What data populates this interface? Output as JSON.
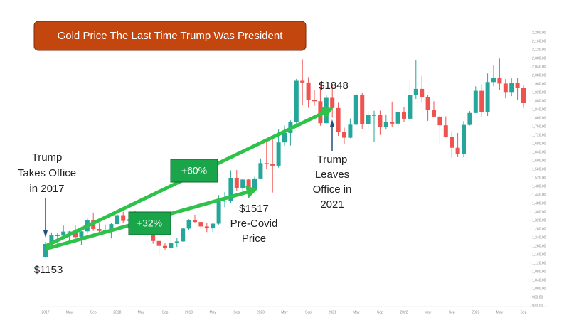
{
  "chart_data": {
    "type": "candlestick",
    "title": "Gold Price The Last Time Trump Was President",
    "categories": [
      "2017",
      null,
      null,
      null,
      "May",
      null,
      null,
      null,
      "Sep",
      null,
      null,
      null,
      "2018",
      null,
      null,
      null,
      "May",
      null,
      null,
      null,
      "Sep",
      null,
      null,
      null,
      "2019",
      null,
      null,
      null,
      "May",
      null,
      null,
      null,
      "Sep",
      null,
      null,
      null,
      "2020",
      null,
      null,
      null,
      "May",
      null,
      null,
      null,
      "Sep",
      null,
      null,
      null,
      "2021",
      null,
      null,
      null,
      "May",
      null,
      null,
      null,
      "Sep",
      null,
      null,
      null,
      "2022",
      null,
      null,
      null,
      "May",
      null,
      null,
      null,
      "Sep",
      null,
      null,
      null,
      "2023",
      null,
      null,
      null,
      "May",
      null,
      null,
      null,
      "Sep"
    ],
    "open": [
      1150,
      1210,
      1250,
      1249,
      1268,
      1268,
      1242,
      1269,
      1322,
      1280,
      1271,
      1275,
      1303,
      1345,
      1318,
      1325,
      1315,
      1298,
      1252,
      1224,
      1201,
      1192,
      1215,
      1222,
      1282,
      1321,
      1313,
      1292,
      1283,
      1305,
      1409,
      1413,
      1520,
      1472,
      1512,
      1463,
      1517,
      1589,
      1585,
      1577,
      1686,
      1730,
      1781,
      1975,
      1967,
      1886,
      1879,
      1776,
      1895,
      1847,
      1734,
      1708,
      1769,
      1907,
      1770,
      1814,
      1814,
      1757,
      1783,
      1774,
      1829,
      1797,
      1909,
      1937,
      1897,
      1837,
      1807,
      1766,
      1711,
      1661,
      1633,
      1768,
      1824,
      1928,
      1827,
      1969,
      1990,
      1962,
      1919,
      1965,
      1940
    ],
    "high": [
      1220,
      1264,
      1262,
      1296,
      1270,
      1296,
      1270,
      1331,
      1357,
      1306,
      1299,
      1309,
      1366,
      1361,
      1356,
      1365,
      1326,
      1309,
      1266,
      1224,
      1214,
      1243,
      1237,
      1284,
      1326,
      1347,
      1324,
      1310,
      1306,
      1439,
      1453,
      1555,
      1557,
      1517,
      1516,
      1525,
      1611,
      1689,
      1704,
      1748,
      1765,
      1789,
      1984,
      2075,
      1992,
      1933,
      1965,
      1906,
      1959,
      1872,
      1755,
      1798,
      1913,
      1917,
      1833,
      1834,
      1835,
      1814,
      1877,
      1831,
      1853,
      1974,
      2070,
      1998,
      1910,
      1879,
      1814,
      1808,
      1735,
      1730,
      1786,
      1833,
      1949,
      1959,
      2009,
      2048,
      2079,
      1983,
      1987,
      1987,
      1953
    ],
    "low": [
      1145,
      1200,
      1195,
      1240,
      1214,
      1236,
      1205,
      1258,
      1271,
      1260,
      1264,
      1236,
      1302,
      1307,
      1303,
      1310,
      1282,
      1246,
      1211,
      1160,
      1180,
      1182,
      1196,
      1221,
      1275,
      1310,
      1281,
      1266,
      1266,
      1301,
      1382,
      1400,
      1460,
      1458,
      1445,
      1453,
      1517,
      1563,
      1451,
      1568,
      1670,
      1671,
      1757,
      1863,
      1848,
      1859,
      1764,
      1775,
      1802,
      1717,
      1677,
      1706,
      1766,
      1750,
      1750,
      1688,
      1721,
      1746,
      1759,
      1753,
      1780,
      1781,
      1890,
      1872,
      1787,
      1806,
      1681,
      1709,
      1615,
      1617,
      1616,
      1765,
      1823,
      1805,
      1810,
      1949,
      1932,
      1893,
      1903,
      1884,
      1848
    ],
    "close": [
      1210,
      1250,
      1249,
      1268,
      1268,
      1242,
      1269,
      1322,
      1280,
      1271,
      1275,
      1303,
      1345,
      1318,
      1325,
      1315,
      1298,
      1252,
      1224,
      1201,
      1192,
      1215,
      1222,
      1282,
      1321,
      1313,
      1292,
      1283,
      1305,
      1409,
      1413,
      1520,
      1472,
      1512,
      1463,
      1517,
      1589,
      1585,
      1577,
      1686,
      1730,
      1781,
      1975,
      1967,
      1886,
      1879,
      1776,
      1895,
      1847,
      1734,
      1708,
      1769,
      1907,
      1770,
      1814,
      1814,
      1757,
      1783,
      1774,
      1829,
      1797,
      1909,
      1937,
      1897,
      1837,
      1807,
      1766,
      1711,
      1661,
      1633,
      1768,
      1824,
      1928,
      1827,
      1969,
      1990,
      1962,
      1919,
      1965,
      1940,
      1870
    ],
    "up_color": "#26a69a",
    "down_color": "#ef5350",
    "ylim": [
      900,
      2220
    ],
    "yticks": [
      {
        "value": 920,
        "label": "920.00"
      },
      {
        "value": 960,
        "label": "960.00"
      },
      {
        "value": 1000,
        "label": "1,000.00"
      },
      {
        "value": 1040,
        "label": "1,040.00"
      },
      {
        "value": 1080,
        "label": "1,080.00"
      },
      {
        "value": 1120,
        "label": "1,120.00"
      },
      {
        "value": 1160,
        "label": "1,160.00"
      },
      {
        "value": 1200,
        "label": "1,200.00"
      },
      {
        "value": 1240,
        "label": "1,240.00"
      },
      {
        "value": 1280,
        "label": "1,280.00"
      },
      {
        "value": 1320,
        "label": "1,320.00"
      },
      {
        "value": 1360,
        "label": "1,360.00"
      },
      {
        "value": 1400,
        "label": "1,400.00"
      },
      {
        "value": 1440,
        "label": "1,440.00"
      },
      {
        "value": 1480,
        "label": "1,480.00"
      },
      {
        "value": 1520,
        "label": "1,520.00"
      },
      {
        "value": 1560,
        "label": "1,560.00"
      },
      {
        "value": 1600,
        "label": "1,600.00"
      },
      {
        "value": 1640,
        "label": "1,640.00"
      },
      {
        "value": 1680,
        "label": "1,680.00"
      },
      {
        "value": 1720,
        "label": "1,720.00"
      },
      {
        "value": 1760,
        "label": "1,760.00"
      },
      {
        "value": 1800,
        "label": "1,800.00"
      },
      {
        "value": 1840,
        "label": "1,840.00"
      },
      {
        "value": 1880,
        "label": "1,880.00"
      },
      {
        "value": 1920,
        "label": "1,920.00"
      },
      {
        "value": 1960,
        "label": "1,960.00"
      },
      {
        "value": 2000,
        "label": "2,000.00"
      },
      {
        "value": 2040,
        "label": "2,040.00"
      },
      {
        "value": 2080,
        "label": "2,080.00"
      },
      {
        "value": 2120,
        "label": "2,120.00"
      },
      {
        "value": 2160,
        "label": "2,160.00"
      },
      {
        "value": 2200,
        "label": "2,200.00"
      }
    ],
    "grid": false,
    "annotations": [
      {
        "lines": [
          "Trump",
          "Takes Office",
          "in 2017"
        ]
      },
      {
        "lines": [
          "$1153"
        ]
      },
      {
        "lines": [
          "+60%"
        ]
      },
      {
        "lines": [
          "+32%"
        ]
      },
      {
        "lines": [
          "$1848"
        ]
      },
      {
        "lines": [
          "$1517",
          "Pre-Covid",
          "Price"
        ]
      },
      {
        "lines": [
          "Trump",
          "Leaves",
          "Office in",
          "2021"
        ]
      }
    ]
  }
}
